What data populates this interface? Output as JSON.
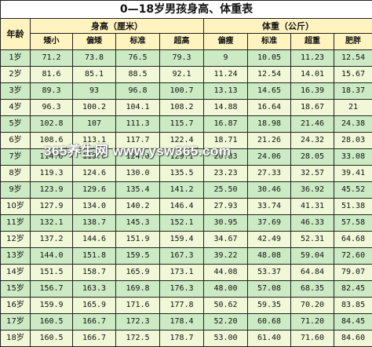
{
  "title": "0—18岁男孩身高、体重表",
  "headers": {
    "age": "年龄",
    "height_group": "身高（厘米）",
    "weight_group": "体重（公斤）",
    "height_cols": [
      "矮小",
      "偏矮",
      "标准",
      "超高"
    ],
    "weight_cols": [
      "偏瘦",
      "标准",
      "超重",
      "肥胖"
    ]
  },
  "rows": [
    {
      "age": "1岁",
      "h": [
        "71.2",
        "73.8",
        "76.5",
        "79.3"
      ],
      "w": [
        "9",
        "10.05",
        "11.23",
        "12.54"
      ]
    },
    {
      "age": "2岁",
      "h": [
        "81.6",
        "85.1",
        "88.5",
        "92.1"
      ],
      "w": [
        "11.24",
        "12.54",
        "14.01",
        "15.67"
      ]
    },
    {
      "age": "3岁",
      "h": [
        "89.3",
        "93",
        "96.8",
        "100.7"
      ],
      "w": [
        "13.13",
        "14.65",
        "16.39",
        "18.37"
      ]
    },
    {
      "age": "4岁",
      "h": [
        "96.3",
        "100.2",
        "104.1",
        "108.2"
      ],
      "w": [
        "14.88",
        "16.64",
        "18.67",
        "21"
      ]
    },
    {
      "age": "5岁",
      "h": [
        "102.8",
        "107",
        "111.3",
        "115.7"
      ],
      "w": [
        "16.87",
        "18.98",
        "21.46",
        "24.38"
      ]
    },
    {
      "age": "6岁",
      "h": [
        "108.6",
        "113.1",
        "117.7",
        "122.4"
      ],
      "w": [
        "18.71",
        "21.26",
        "24.32",
        "28.03"
      ]
    },
    {
      "age": "7岁",
      "h": [
        "114.0",
        "119.0",
        "124.0",
        "129.1"
      ],
      "w": [
        "20.83",
        "24.06",
        "28.05",
        "33.08"
      ]
    },
    {
      "age": "8岁",
      "h": [
        "119.3",
        "124.6",
        "130.0",
        "135.5"
      ],
      "w": [
        "23.23",
        "27.33",
        "32.57",
        "39.41"
      ]
    },
    {
      "age": "9岁",
      "h": [
        "123.9",
        "129.6",
        "135.4",
        "141.2"
      ],
      "w": [
        "25.50",
        "30.46",
        "36.92",
        "45.52"
      ]
    },
    {
      "age": "10岁",
      "h": [
        "127.9",
        "134.0",
        "140.2",
        "146.4"
      ],
      "w": [
        "27.93",
        "33.74",
        "41.31",
        "51.38"
      ]
    },
    {
      "age": "11岁",
      "h": [
        "132.1",
        "138.7",
        "145.3",
        "152.1"
      ],
      "w": [
        "30.95",
        "37.69",
        "46.33",
        "57.58"
      ]
    },
    {
      "age": "12岁",
      "h": [
        "137.2",
        "144.6",
        "151.9",
        "159.4"
      ],
      "w": [
        "34.67",
        "42.49",
        "52.31",
        "64.68"
      ]
    },
    {
      "age": "13岁",
      "h": [
        "144.0",
        "151.8",
        "159.5",
        "167.3"
      ],
      "w": [
        "39.22",
        "48.08",
        "59.04",
        "72.60"
      ]
    },
    {
      "age": "14岁",
      "h": [
        "151.5",
        "158.7",
        "165.9",
        "173.1"
      ],
      "w": [
        "44.08",
        "53.37",
        "64.84",
        "79.07"
      ]
    },
    {
      "age": "15岁",
      "h": [
        "156.7",
        "163.3",
        "169.8",
        "176.3"
      ],
      "w": [
        "48.00",
        "57.08",
        "68.35",
        "82.45"
      ]
    },
    {
      "age": "16岁",
      "h": [
        "159.9",
        "165.9",
        "171.6",
        "177.8"
      ],
      "w": [
        "50.62",
        "59.35",
        "70.20",
        "83.85"
      ]
    },
    {
      "age": "17岁",
      "h": [
        "160.5",
        "166.7",
        "172.3",
        "178.4"
      ],
      "w": [
        "52.20",
        "60.68",
        "71.20",
        "84.45"
      ]
    },
    {
      "age": "18岁",
      "h": [
        "160.5",
        "166.7",
        "172.5",
        "178.7"
      ],
      "w": [
        "53.00",
        "61.40",
        "71.60",
        "84.60"
      ]
    }
  ],
  "watermark": "365养生网 www.ysw365.com",
  "colors": {
    "header_bg": "#fff3bf",
    "row_even": "#ccebc4",
    "row_odd": "#f0f8d8"
  }
}
